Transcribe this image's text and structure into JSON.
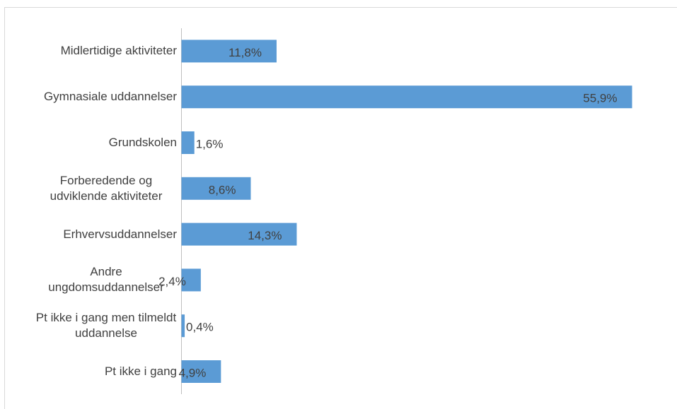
{
  "chart_data": {
    "type": "bar",
    "orientation": "horizontal",
    "categories": [
      "Midlertidige aktiviteter",
      "Gymnasiale uddannelser",
      "Grundskolen",
      "Forberedende og udviklende aktiviteter",
      "Erhvervsuddannelser",
      "Andre ungdomsuddannelser",
      "Pt ikke i gang men tilmeldt uddannelse",
      "Pt ikke i gang"
    ],
    "values": [
      11.8,
      55.9,
      1.6,
      8.6,
      14.3,
      2.4,
      0.4,
      4.9
    ],
    "value_labels": [
      "11,8%",
      "55,9%",
      "1,6%",
      "8,6%",
      "14,3%",
      "2,4%",
      "0,4%",
      "4,9%"
    ],
    "color": "#5b9bd5"
  }
}
